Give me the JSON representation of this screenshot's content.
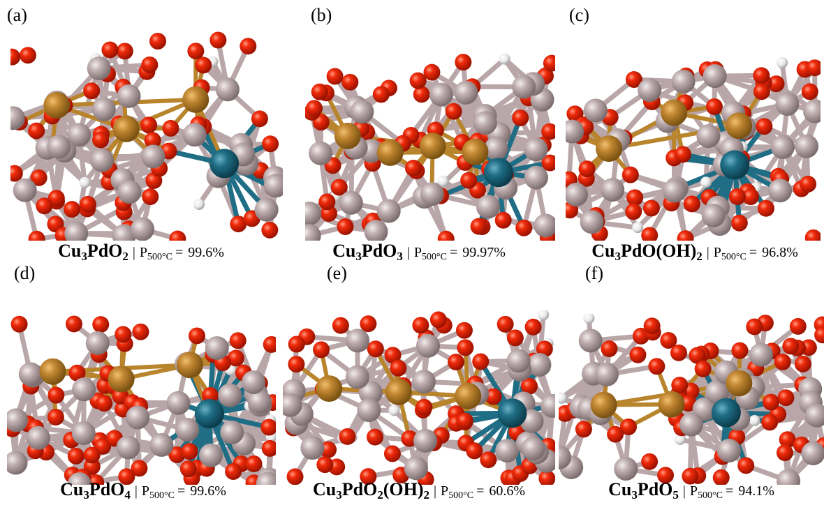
{
  "separator": "|",
  "p_symbol": "P",
  "p_subscript": "500°C",
  "equals": "=",
  "panels": [
    {
      "label": "(a)",
      "formula": [
        "Cu",
        "3",
        "PdO",
        "2"
      ],
      "p_value": "99.6%"
    },
    {
      "label": "(b)",
      "formula": [
        "Cu",
        "3",
        "PdO",
        "3"
      ],
      "p_value": "99.97%"
    },
    {
      "label": "(c)",
      "formula": [
        "Cu",
        "3",
        "PdO(OH)",
        "2"
      ],
      "p_value": "96.8%"
    },
    {
      "label": "(d)",
      "formula": [
        "Cu",
        "3",
        "PdO",
        "4"
      ],
      "p_value": "99.6%"
    },
    {
      "label": "(e)",
      "formula": [
        "Cu",
        "3",
        "PdO",
        "2",
        "(OH)",
        "2"
      ],
      "p_value": "60.6%"
    },
    {
      "label": "(f)",
      "formula": [
        "Cu",
        "3",
        "PdO",
        "5"
      ],
      "p_value": "94.1%"
    }
  ]
}
